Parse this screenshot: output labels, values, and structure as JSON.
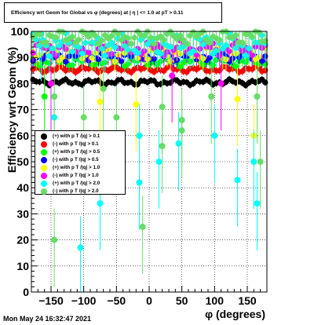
{
  "title": "Efficiency wrt Geom for Global vs φ (degrees) at | η | <= 1.0 at pT > 0.11",
  "timestamp": "Mon May 24 16:32:47 2021",
  "chart_data": {
    "type": "scatter",
    "title": "Efficiency wrt Geom for Global vs φ (degrees) at | η | <= 1.0 at pT > 0.11",
    "xlabel": "φ (degrees)",
    "ylabel": "Efficiency wrt Geom (%)",
    "xlim": [
      -180,
      180
    ],
    "ylim": [
      0,
      100
    ],
    "xticks": [
      -150,
      -100,
      -50,
      0,
      50,
      100,
      150
    ],
    "xtick_labels": [
      "−150",
      "−100",
      "−50",
      "0",
      "50",
      "100",
      "150"
    ],
    "yticks": [
      0,
      10,
      20,
      30,
      40,
      50,
      60,
      70,
      80,
      90,
      100
    ],
    "ytick_labels": [
      "0",
      "10",
      "20",
      "30",
      "40",
      "50",
      "60",
      "70",
      "80",
      "90",
      "100"
    ],
    "grid": true,
    "legend_position": "left",
    "series": [
      {
        "name": "(+) with p T /|q| > 0.1",
        "color": "#000000",
        "level": 80.5,
        "spread": 1.2,
        "err": 1.3,
        "outliers": []
      },
      {
        "name": "(-) with p T /|q| > 0.1",
        "color": "#ff0000",
        "level": 85.5,
        "spread": 1.3,
        "err": 1.5,
        "outliers": []
      },
      {
        "name": "(+) with p T /|q| > 0.5",
        "color": "#00ff00",
        "level": 88.5,
        "spread": 2.0,
        "err": 2.5,
        "outliers": [
          [
            -160,
            75
          ]
        ]
      },
      {
        "name": "(-) with p T /|q| > 0.5",
        "color": "#0000ff",
        "level": 90.5,
        "spread": 2.2,
        "err": 2.5,
        "outliers": []
      },
      {
        "name": "(+) with p T /|q| > 1.0",
        "color": "#ffff00",
        "level": 92.0,
        "spread": 3.5,
        "err": 4.0,
        "outliers": [
          [
            -75,
            73
          ],
          [
            -20,
            72
          ],
          [
            135,
            74
          ],
          [
            160,
            60
          ]
        ]
      },
      {
        "name": "(-) with p T /|q| > 1.0",
        "color": "#ff00ff",
        "level": 93.5,
        "spread": 3.0,
        "err": 4.0,
        "outliers": [
          [
            -150,
            80
          ],
          [
            35,
            83
          ],
          [
            110,
            80
          ]
        ]
      },
      {
        "name": "(+) with p T /|q| > 2.0",
        "color": "#00ffff",
        "level": 95.0,
        "spread": 4.5,
        "err": 6.0,
        "outliers": [
          [
            -165,
            99
          ],
          [
            -145,
            67
          ],
          [
            -105,
            17
          ],
          [
            -75,
            34
          ],
          [
            -15,
            60
          ],
          [
            -15,
            42
          ],
          [
            15,
            50
          ],
          [
            45,
            57
          ],
          [
            100,
            60
          ],
          [
            135,
            43
          ],
          [
            165,
            34
          ],
          [
            160,
            50
          ]
        ]
      },
      {
        "name": "(-) with p T /|q| > 2.0",
        "color": "#66dd66",
        "level": 98.0,
        "spread": 3.0,
        "err": 5.0,
        "outliers": [
          [
            -145,
            20
          ],
          [
            -145,
            75
          ],
          [
            -100,
            67
          ],
          [
            -70,
            78
          ],
          [
            -50,
            67
          ],
          [
            -10,
            25
          ],
          [
            20,
            56
          ],
          [
            20,
            71
          ],
          [
            50,
            62
          ],
          [
            50,
            66
          ],
          [
            95,
            75
          ],
          [
            165,
            75
          ],
          [
            170,
            50
          ]
        ]
      }
    ]
  }
}
